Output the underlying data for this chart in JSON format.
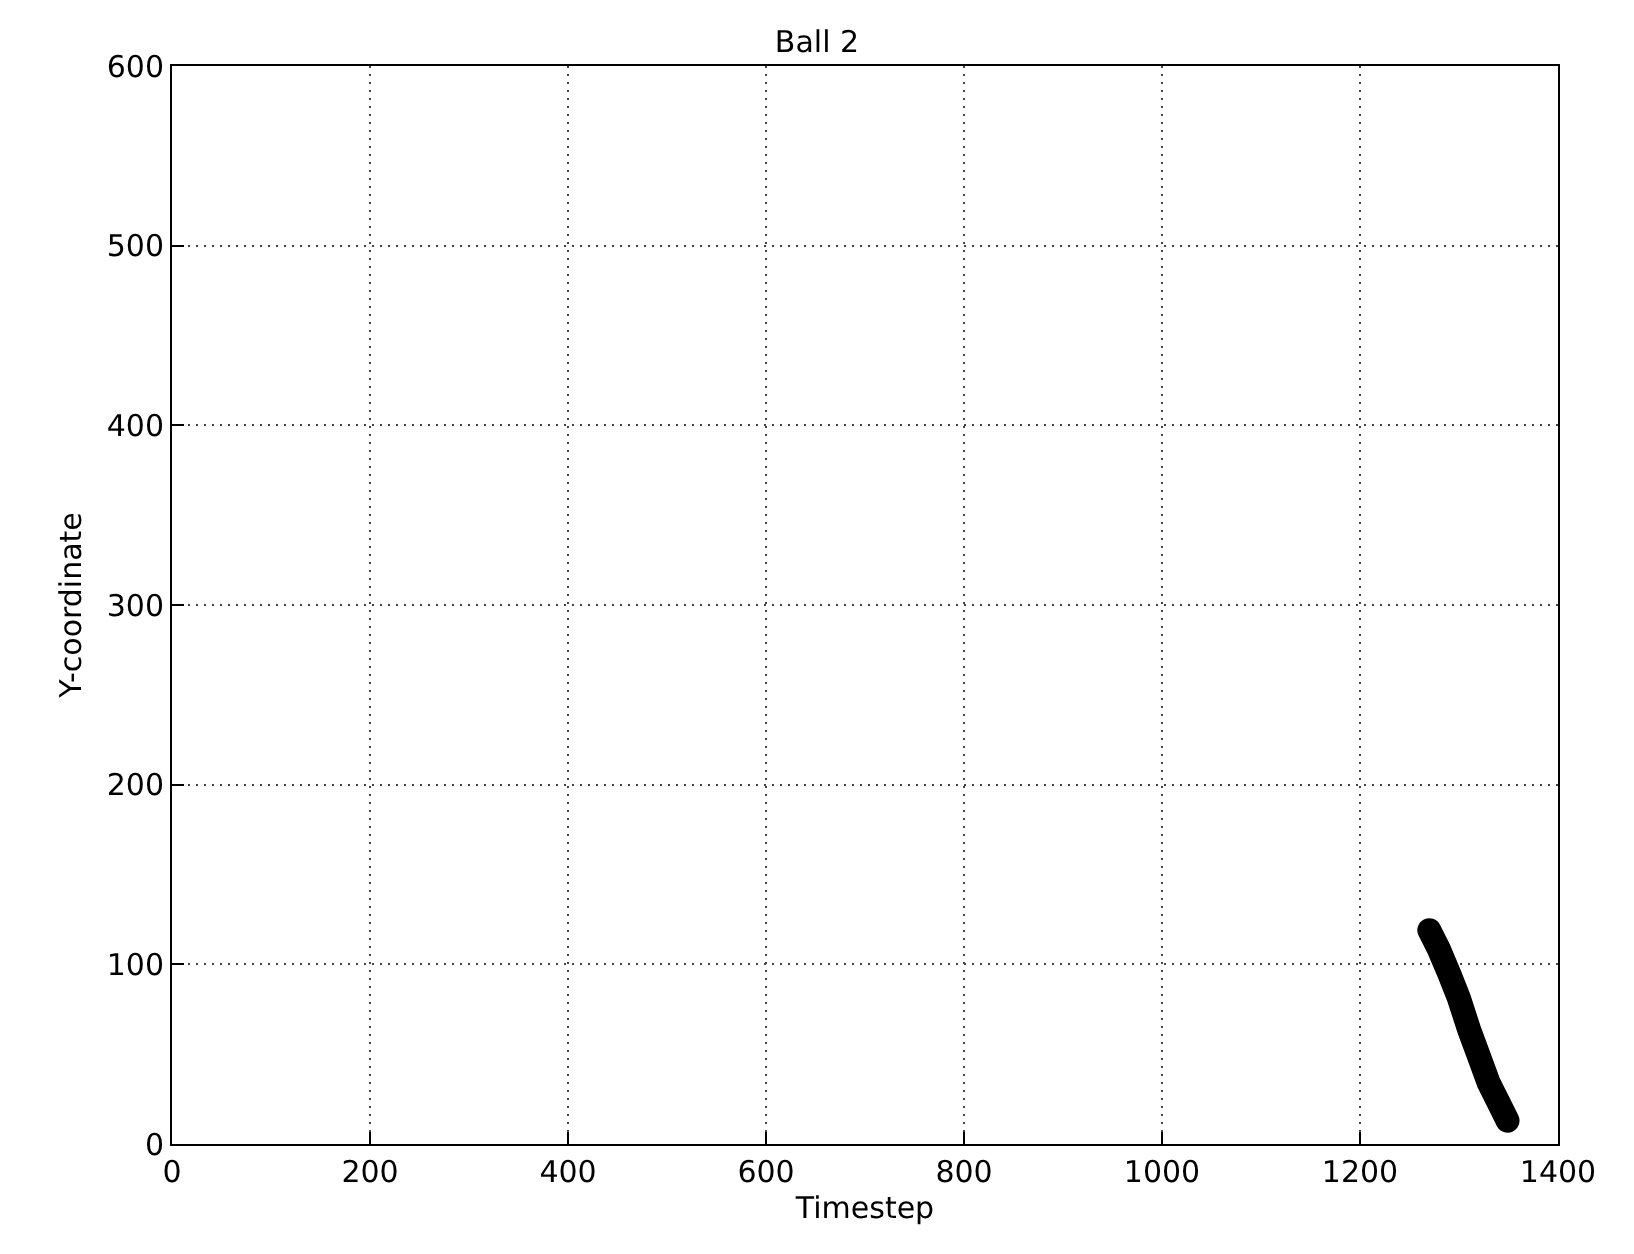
{
  "chart_data": {
    "type": "line",
    "title": "Ball 2",
    "xlabel": "Timestep",
    "ylabel": "Y-coordinate",
    "x": [
      1270,
      1280,
      1290,
      1300,
      1310,
      1320,
      1330,
      1340,
      1349
    ],
    "series": [
      {
        "color": "#000000",
        "values": [
          119,
          108,
          95,
          81,
          64,
          49,
          34,
          23,
          13
        ]
      }
    ],
    "xlim": [
      0,
      1400
    ],
    "xticks": [
      0,
      200,
      400,
      600,
      800,
      1000,
      1200,
      1400
    ],
    "ylim": [
      0,
      600
    ],
    "yticks": [
      0,
      100,
      200,
      300,
      400,
      500,
      600
    ],
    "grid": true,
    "line_style": "solid"
  }
}
